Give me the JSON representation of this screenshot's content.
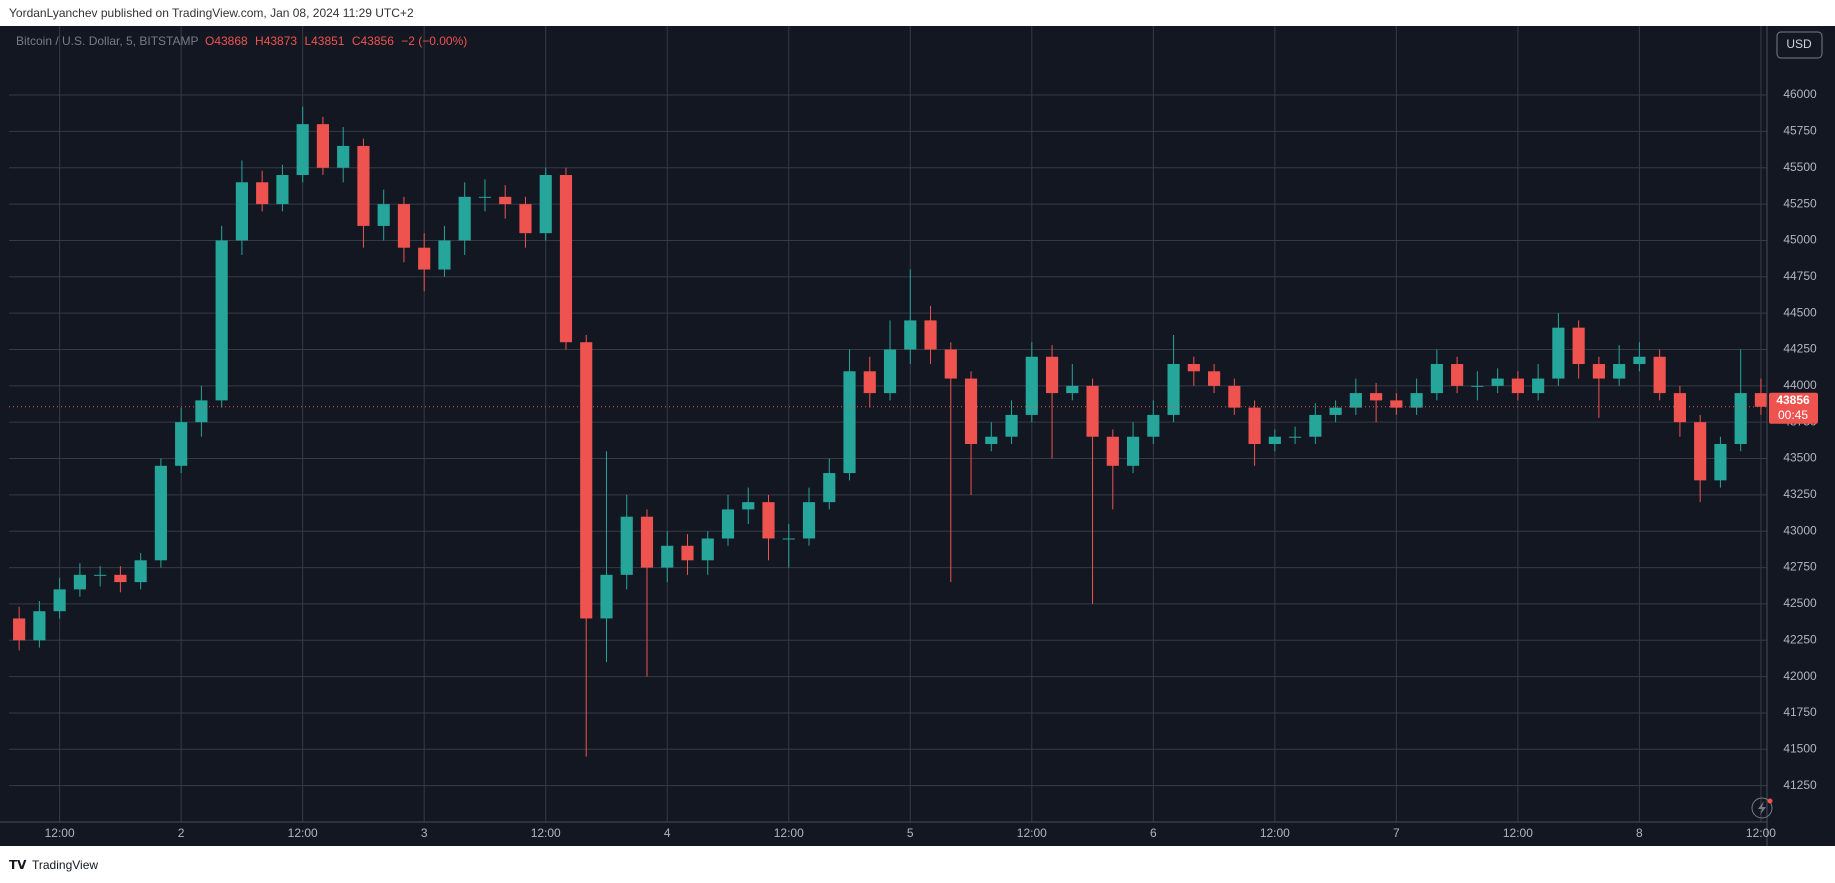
{
  "header": {
    "publisher": "YordanLyanchev published on TradingView.com, Jan 08, 2024 11:29 UTC+2"
  },
  "footer": {
    "brand": "TradingView"
  },
  "chart_data": {
    "type": "candlestick",
    "legend": {
      "symbol": "Bitcoin / U.S. Dollar, 5, BITSTAMP",
      "open": "O43868",
      "high": "H43873",
      "low": "L43851",
      "close": "C43856",
      "change": "−2 (−0.00%)"
    },
    "currency": "USD",
    "countdown": "00:45",
    "up_color": "#26a69a",
    "down_color": "#ef5350",
    "grid": true,
    "x": [
      8,
      10,
      12,
      14,
      16,
      18,
      20,
      22,
      24,
      26,
      28,
      30,
      32,
      34,
      36,
      38,
      40,
      42,
      44,
      46,
      48,
      50,
      52,
      54,
      56,
      58,
      60,
      62,
      64,
      66,
      68,
      70,
      72,
      74,
      76,
      78,
      80,
      82,
      84,
      86,
      88,
      90,
      92,
      94,
      96,
      98,
      100,
      102,
      104,
      106,
      108,
      110,
      112,
      114,
      116,
      118,
      120,
      122,
      124,
      126,
      128,
      130,
      132,
      134,
      136,
      138,
      140,
      142,
      144,
      146,
      148,
      150,
      152,
      154,
      156,
      158,
      160,
      162,
      164,
      166,
      168,
      170,
      172,
      174,
      176,
      178,
      180
    ],
    "open": [
      42400,
      42250,
      42450,
      42600,
      42700,
      42700,
      42650,
      42800,
      43450,
      43750,
      43900,
      45000,
      45400,
      45250,
      45450,
      45800,
      45500,
      45650,
      45100,
      45250,
      44950,
      44800,
      45000,
      45300,
      45300,
      45250,
      45050,
      45450,
      44300,
      42400,
      42700,
      43100,
      42750,
      42900,
      42800,
      42950,
      43150,
      43200,
      42950,
      42950,
      43200,
      43400,
      44100,
      43950,
      44250,
      44450,
      44250,
      44050,
      43600,
      43650,
      43800,
      44200,
      43950,
      44000,
      43650,
      43450,
      43650,
      43800,
      44150,
      44100,
      44000,
      43850,
      43600,
      43650,
      43650,
      43800,
      43850,
      43950,
      43900,
      43850,
      43950,
      44150,
      44000,
      44000,
      44050,
      43950,
      44050,
      44400,
      44150,
      44050,
      44150,
      44200,
      43950,
      43750,
      43350,
      43600,
      43950
    ],
    "high": [
      42480,
      42520,
      42680,
      42780,
      42760,
      42760,
      42850,
      43500,
      43850,
      44000,
      45100,
      45550,
      45480,
      45520,
      45920,
      45850,
      45780,
      45700,
      45350,
      45300,
      45050,
      45100,
      45400,
      45420,
      45380,
      45300,
      45500,
      45500,
      44350,
      43550,
      43250,
      43150,
      43000,
      42980,
      43000,
      43250,
      43300,
      43250,
      43050,
      43300,
      43500,
      44250,
      44200,
      44450,
      44800,
      44550,
      44300,
      44100,
      43750,
      43900,
      44300,
      44280,
      44150,
      44050,
      43700,
      43750,
      43900,
      44350,
      44200,
      44150,
      44050,
      43900,
      43700,
      43720,
      43880,
      43900,
      44050,
      44020,
      43950,
      44050,
      44250,
      44200,
      44100,
      44120,
      44100,
      44150,
      44500,
      44450,
      44200,
      44280,
      44300,
      44250,
      44000,
      43800,
      43650,
      44250,
      44050
    ],
    "low": [
      42180,
      42200,
      42400,
      42550,
      42620,
      42580,
      42600,
      42750,
      43400,
      43650,
      43850,
      44900,
      45200,
      45200,
      45400,
      45450,
      45400,
      44950,
      45000,
      44850,
      44650,
      44750,
      44900,
      45200,
      45150,
      44950,
      45000,
      44250,
      41450,
      42100,
      42600,
      42000,
      42650,
      42700,
      42700,
      42900,
      43050,
      42800,
      42750,
      42900,
      43150,
      43350,
      43850,
      43900,
      44150,
      44150,
      42650,
      43250,
      43550,
      43600,
      43750,
      43500,
      43900,
      42500,
      43150,
      43400,
      43600,
      43750,
      44000,
      43950,
      43800,
      43450,
      43550,
      43600,
      43600,
      43750,
      43800,
      43750,
      43800,
      43800,
      43900,
      43950,
      43900,
      43950,
      43900,
      43900,
      44000,
      44050,
      43780,
      44000,
      44100,
      43900,
      43650,
      43200,
      43300,
      43550,
      43800
    ],
    "close": [
      42250,
      42450,
      42600,
      42700,
      42700,
      42650,
      42800,
      43450,
      43750,
      43900,
      45000,
      45400,
      45250,
      45450,
      45800,
      45500,
      45650,
      45100,
      45250,
      44950,
      44800,
      45000,
      45300,
      45300,
      45250,
      45050,
      45450,
      44300,
      42400,
      42700,
      43100,
      42750,
      42900,
      42800,
      42950,
      43150,
      43200,
      42950,
      42950,
      43200,
      43400,
      44100,
      43950,
      44250,
      44450,
      44250,
      44050,
      43600,
      43650,
      43800,
      44200,
      43950,
      44000,
      43650,
      43450,
      43650,
      43800,
      44150,
      44100,
      44000,
      43850,
      43600,
      43650,
      43650,
      43800,
      43850,
      43950,
      43900,
      43850,
      43950,
      44150,
      44000,
      44000,
      44050,
      43950,
      44050,
      44400,
      44150,
      44050,
      44150,
      44200,
      43950,
      43750,
      43350,
      43600,
      43950,
      43856
    ],
    "xlim": [
      7,
      180.6
    ],
    "xticks": [
      {
        "value": 12,
        "label": "12:00"
      },
      {
        "value": 24,
        "label": "2"
      },
      {
        "value": 36,
        "label": "12:00"
      },
      {
        "value": 48,
        "label": "3"
      },
      {
        "value": 60,
        "label": "12:00"
      },
      {
        "value": 72,
        "label": "4"
      },
      {
        "value": 84,
        "label": "12:00"
      },
      {
        "value": 96,
        "label": "5"
      },
      {
        "value": 108,
        "label": "12:00"
      },
      {
        "value": 120,
        "label": "6"
      },
      {
        "value": 132,
        "label": "12:00"
      },
      {
        "value": 144,
        "label": "7"
      },
      {
        "value": 156,
        "label": "12:00"
      },
      {
        "value": 168,
        "label": "8"
      },
      {
        "value": 180,
        "label": "12:00"
      }
    ],
    "ylim": [
      41000,
      46475
    ],
    "yticks": [
      41250,
      41500,
      41750,
      42000,
      42250,
      42500,
      42750,
      43000,
      43250,
      43500,
      43750,
      44000,
      44250,
      44500,
      44750,
      45000,
      45250,
      45500,
      45750,
      46000
    ]
  }
}
